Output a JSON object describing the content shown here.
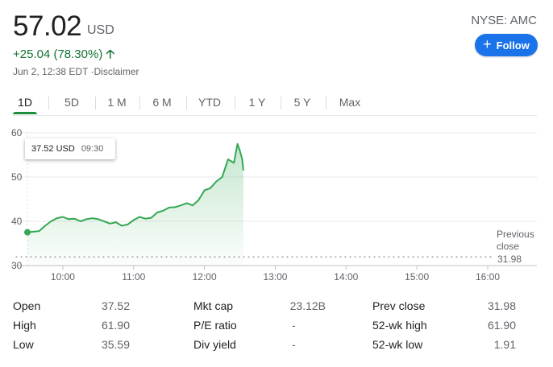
{
  "quote": {
    "price": "57.02",
    "currency": "USD",
    "change": "+25.04 (78.30%)",
    "change_color": "#137333",
    "timestamp": "Jun 2, 12:38 EDT ·Disclaimer",
    "exchange": "NYSE: AMC"
  },
  "follow_button": {
    "label": "Follow",
    "color": "#1a73e8"
  },
  "tabs": [
    {
      "label": "1D",
      "active": true
    },
    {
      "label": "5D"
    },
    {
      "label": "1 M"
    },
    {
      "label": "6 M"
    },
    {
      "label": "YTD"
    },
    {
      "label": "1 Y"
    },
    {
      "label": "5 Y"
    },
    {
      "label": "Max"
    }
  ],
  "tooltip": {
    "value": "37.52 USD",
    "time": "09:30"
  },
  "chart_data": {
    "type": "line",
    "y_ticks": [
      "60",
      "50",
      "40",
      "30"
    ],
    "ylim": [
      30,
      60
    ],
    "x_ticks": [
      "10:00",
      "11:00",
      "12:00",
      "13:00",
      "14:00",
      "15:00",
      "16:00"
    ],
    "previous_close": {
      "label_line1": "Previous",
      "label_line2": "close",
      "value": "31.98",
      "numeric": 31.98
    },
    "line_color": "#34a853",
    "series": [
      {
        "x": [
          "09:30",
          "09:40",
          "09:45",
          "09:50",
          "09:55",
          "10:00",
          "10:05",
          "10:10",
          "10:15",
          "10:20",
          "10:25",
          "10:30",
          "10:35",
          "10:40",
          "10:45",
          "10:50",
          "10:55",
          "11:00",
          "11:05",
          "11:10",
          "11:15",
          "11:20",
          "11:25",
          "11:30",
          "11:35",
          "11:40",
          "11:45",
          "11:50",
          "11:55",
          "12:00",
          "12:05",
          "12:10",
          "12:15",
          "12:20",
          "12:25",
          "12:28",
          "12:30",
          "12:32",
          "12:33"
        ],
        "y": [
          37.52,
          37.8,
          39.0,
          40.0,
          40.7,
          41.0,
          40.5,
          40.6,
          40.0,
          40.5,
          40.7,
          40.5,
          40.0,
          39.5,
          39.8,
          39.0,
          39.3,
          40.3,
          41.0,
          40.6,
          40.8,
          42.0,
          42.4,
          43.1,
          43.2,
          43.6,
          44.1,
          43.6,
          44.8,
          47.0,
          47.5,
          49.0,
          50.0,
          54.0,
          53.2,
          57.5,
          56.0,
          54.0,
          51.5
        ]
      }
    ]
  },
  "stats": {
    "col1": [
      {
        "label": "Open",
        "value": "37.52"
      },
      {
        "label": "High",
        "value": "61.90"
      },
      {
        "label": "Low",
        "value": "35.59"
      }
    ],
    "col2": [
      {
        "label": "Mkt cap",
        "value": "23.12B"
      },
      {
        "label": "P/E ratio",
        "value": "-"
      },
      {
        "label": "Div yield",
        "value": "-"
      }
    ],
    "col3": [
      {
        "label": "Prev close",
        "value": "31.98"
      },
      {
        "label": "52-wk high",
        "value": "61.90"
      },
      {
        "label": "52-wk low",
        "value": "1.91"
      }
    ]
  }
}
